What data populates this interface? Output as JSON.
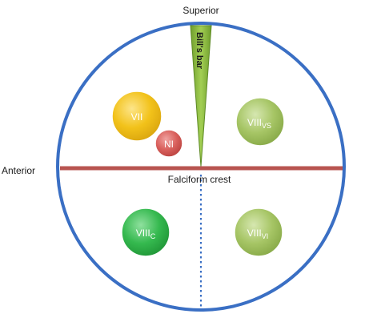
{
  "labels": {
    "superior": "Superior",
    "anterior": "Anterior",
    "falciform_crest": "Falciform crest",
    "bills_bar": "Bill's bar"
  },
  "nodes": {
    "facial": {
      "main": "VII",
      "sub": "",
      "color": "#f2c21a"
    },
    "nervus_intermedius": {
      "main": "NI",
      "sub": "",
      "color": "#d9534f"
    },
    "superior_vestibular": {
      "main": "VIII",
      "sub": "VS",
      "color": "#9bbb59"
    },
    "cochlear": {
      "main": "VIII",
      "sub": "C",
      "color": "#2fb34a"
    },
    "inferior_vestibular": {
      "main": "VIII",
      "sub": "VI",
      "color": "#9bbb59"
    }
  },
  "colors": {
    "canal_outline": "#3a6fc4",
    "falciform_crest_line": "#b85450",
    "bills_bar_fill": "#8fbf3f",
    "dotted_divider": "#3a6fc4"
  }
}
